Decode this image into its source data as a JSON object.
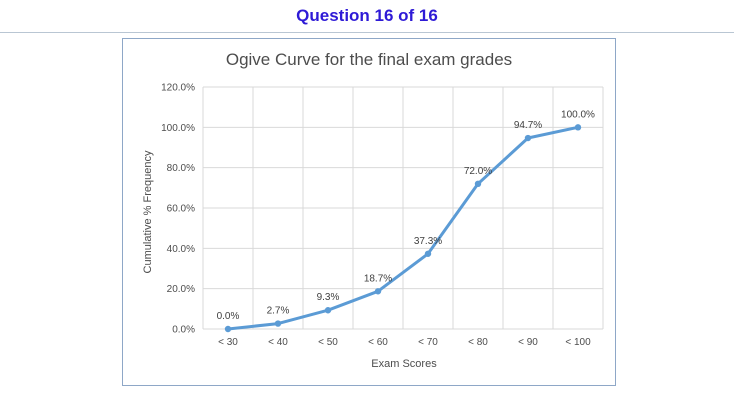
{
  "header": {
    "question_label": "Question 16 of 16"
  },
  "colors": {
    "accent": "#2e1ad6",
    "series": "#5b9bd5",
    "grid": "#d9d9d9"
  },
  "chart_data": {
    "type": "line",
    "title": "Ogive Curve for the final exam grades",
    "xlabel": "Exam Scores",
    "ylabel": "Cumulative % Frequency",
    "categories": [
      "< 30",
      "< 40",
      "< 50",
      "< 60",
      "< 70",
      "< 80",
      "< 90",
      "< 100"
    ],
    "values": [
      0.0,
      2.7,
      9.3,
      18.7,
      37.3,
      72.0,
      94.7,
      100.0
    ],
    "data_labels": [
      "0.0%",
      "2.7%",
      "9.3%",
      "18.7%",
      "37.3%",
      "72.0%",
      "94.7%",
      "100.0%"
    ],
    "yticks": [
      "0.0%",
      "20.0%",
      "40.0%",
      "60.0%",
      "80.0%",
      "100.0%",
      "120.0%"
    ],
    "ylim": [
      0,
      120
    ],
    "grid": true,
    "markers": true
  }
}
